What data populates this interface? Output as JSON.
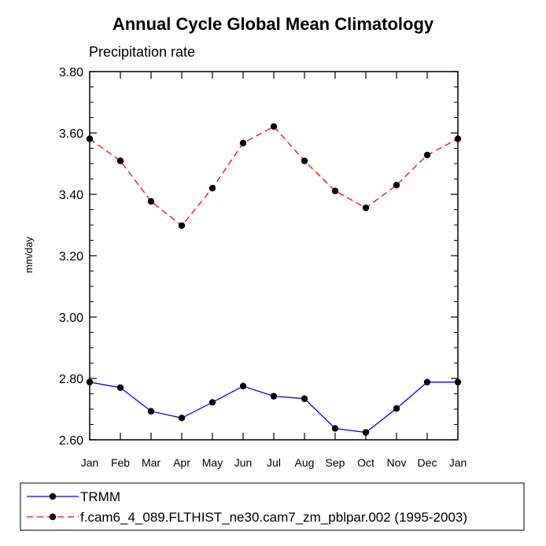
{
  "chart_data": {
    "type": "line",
    "title": "Annual Cycle Global Mean Climatology",
    "subtitle": "Precipitation rate",
    "xlabel": "",
    "ylabel": "mm/day",
    "ylim": [
      2.6,
      3.8
    ],
    "yticks": [
      "2.60",
      "2.80",
      "3.00",
      "3.20",
      "3.40",
      "3.60",
      "3.80"
    ],
    "ytick_values": [
      2.6,
      2.8,
      3.0,
      3.2,
      3.4,
      3.6,
      3.8
    ],
    "categories": [
      "Jan",
      "Feb",
      "Mar",
      "Apr",
      "May",
      "Jun",
      "Jul",
      "Aug",
      "Sep",
      "Oct",
      "Nov",
      "Dec",
      "Jan"
    ],
    "grid": false,
    "legend_position": "bottom",
    "series": [
      {
        "name": "TRMM",
        "color": "#0000ff",
        "style": "solid",
        "values": [
          2.788,
          2.77,
          2.693,
          2.671,
          2.722,
          2.775,
          2.742,
          2.734,
          2.637,
          2.624,
          2.702,
          2.788,
          2.788
        ]
      },
      {
        "name": "f.cam6_4_089.FLTHIST_ne30.cam7_zm_pblpar.002 (1995-2003)",
        "color": "#ff0000",
        "style": "dashed",
        "values": [
          3.581,
          3.509,
          3.377,
          3.298,
          3.42,
          3.567,
          3.621,
          3.509,
          3.411,
          3.356,
          3.43,
          3.528,
          3.581
        ]
      }
    ]
  }
}
